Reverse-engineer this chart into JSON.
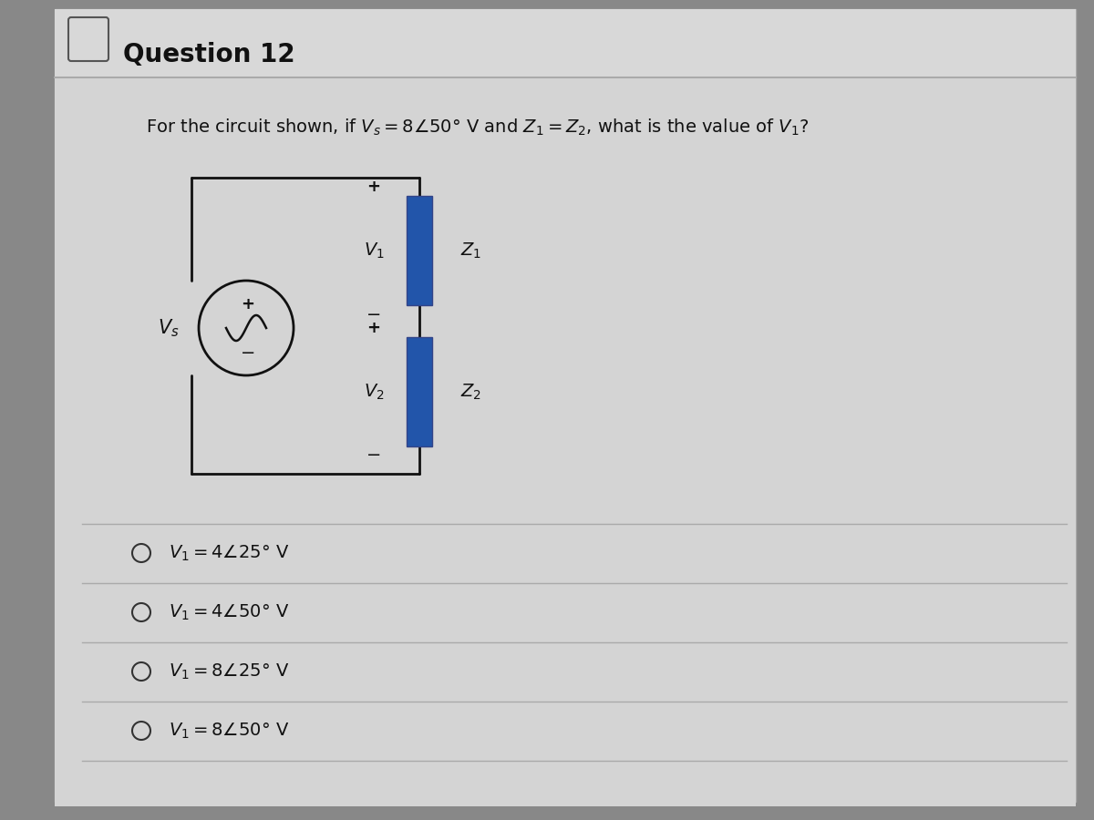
{
  "title": "Question 12",
  "bg_outer": "#888888",
  "bg_card": "#e8e8e8",
  "bg_header": "#e0e0e0",
  "header_line_color": "#999999",
  "options": [
    "O  $V_1 = 4\\angle25°$ V",
    "O  $V_1 = 4\\angle50°$ V",
    "O  $V_1 = 8\\angle25°$ V",
    "O  $V_1 = 8\\angle50°$ V"
  ],
  "zcolor": "#2255aa",
  "circuit_lw": 2.0
}
